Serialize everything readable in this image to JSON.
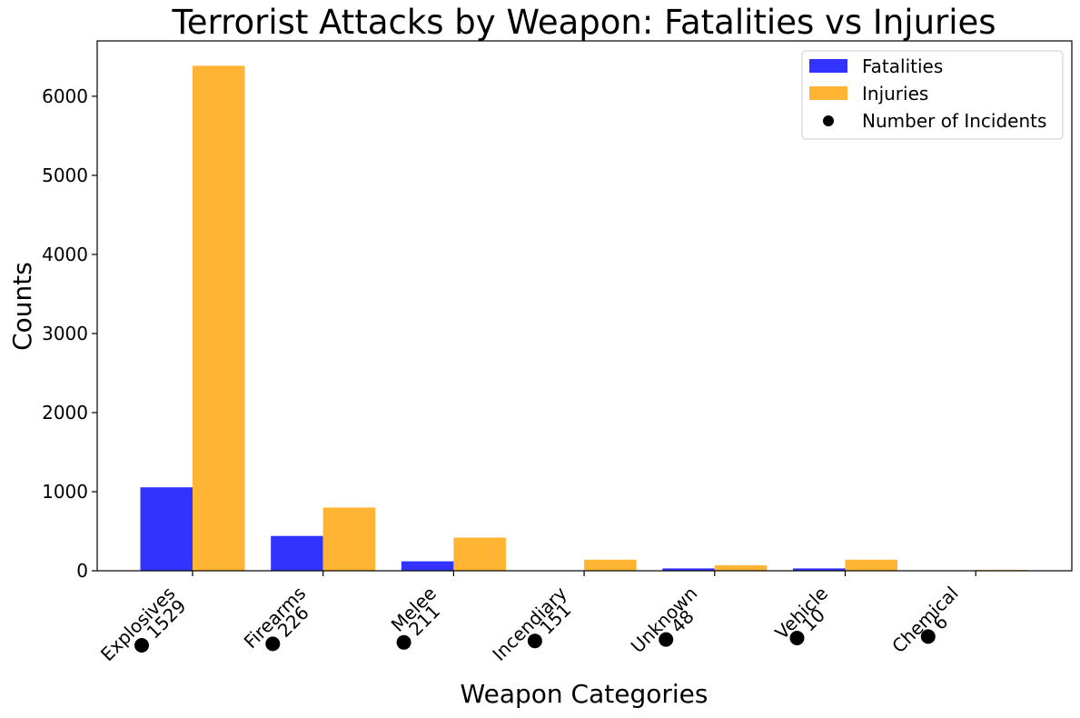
{
  "chart_data": {
    "type": "bar",
    "title": "Terrorist Attacks by Weapon: Fatalities vs Injuries",
    "xlabel": "Weapon Categories",
    "ylabel": "Counts",
    "ylim": [
      0,
      6700
    ],
    "yticks": [
      0,
      1000,
      2000,
      3000,
      4000,
      5000,
      6000
    ],
    "categories": [
      "Explosives",
      "Firearms",
      "Melee",
      "Incendiary",
      "Unknown",
      "Vehicle",
      "Chemical"
    ],
    "series": [
      {
        "name": "Fatalities",
        "color": "#3333ff",
        "values": [
          1055,
          440,
          120,
          0,
          30,
          30,
          0
        ]
      },
      {
        "name": "Injuries",
        "color": "#ffb533",
        "values": [
          6385,
          800,
          420,
          140,
          70,
          140,
          10
        ]
      }
    ],
    "incidents": {
      "name": "Number of Incidents",
      "marker_color": "#000000",
      "values": [
        "1529",
        "226",
        "211",
        "151",
        "48",
        "10",
        "6"
      ]
    },
    "legend_position": "upper right",
    "grid": false
  }
}
